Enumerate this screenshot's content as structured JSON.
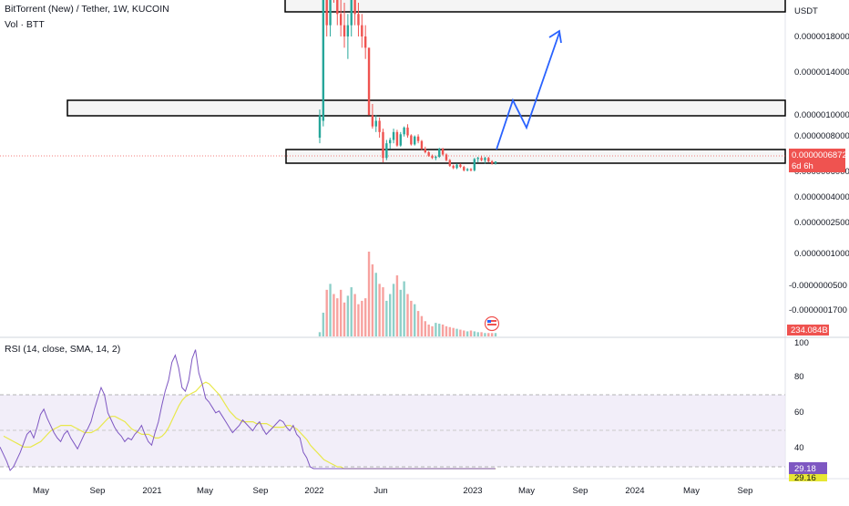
{
  "header": {
    "title": "BitTorrent (New) / Tether, 1W, KUCOIN",
    "volume_label": "Vol · BTT",
    "rsi_label": "RSI (14, close, SMA, 14, 2)"
  },
  "colors": {
    "up": "#26a69a",
    "down": "#ef5350",
    "up_volume": "#8fd0c9",
    "down_volume": "#f7a29f",
    "rsi_line": "#7e57c2",
    "rsi_ma": "#e8e84b",
    "rsi_band": "#ede7f6",
    "projection": "#2962ff",
    "current_price_badge": "#ef5350",
    "rsi_value_badge": "#7e57c2",
    "rsi_ma_badge": "#e6e633"
  },
  "chart_data": {
    "type": "candlestick",
    "price_axis": {
      "currency": "USDT",
      "tick_labels": [
        "0.0000018000",
        "0.0000014000",
        "0.0000010000",
        "0.0000008000",
        "0.0000006000",
        "0.0000004000",
        "0.0000002500",
        "0.0000001000",
        "-0.0000000500",
        "-0.0000001700"
      ],
      "current_price": "0.0000006872",
      "countdown": "6d 6h",
      "volume_value": "234.084B"
    },
    "time_axis": [
      "May",
      "Sep",
      "2021",
      "May",
      "Sep",
      "2022",
      "Jun",
      "2023",
      "May",
      "Sep",
      "2024",
      "May",
      "Sep"
    ],
    "candles": [
      {
        "o": 9e-07,
        "h": 1.15e-06,
        "l": 8.5e-07,
        "c": 1.1e-06
      },
      {
        "o": 1.05e-06,
        "h": 2.4e-06,
        "l": 1e-06,
        "c": 2.3e-06
      },
      {
        "o": 2.3e-06,
        "h": 2.6e-06,
        "l": 1.8e-06,
        "c": 1.9e-06
      },
      {
        "o": 1.9e-06,
        "h": 2.5e-06,
        "l": 1.8e-06,
        "c": 2.4e-06
      },
      {
        "o": 2.4e-06,
        "h": 2.5e-06,
        "l": 2.1e-06,
        "c": 2.2e-06
      },
      {
        "o": 2.2e-06,
        "h": 2.3e-06,
        "l": 1.9e-06,
        "c": 2e-06
      },
      {
        "o": 2e-06,
        "h": 2.2e-06,
        "l": 1.8e-06,
        "c": 1.9e-06
      },
      {
        "o": 1.9e-06,
        "h": 2.1e-06,
        "l": 1.7e-06,
        "c": 1.8e-06
      },
      {
        "o": 1.8e-06,
        "h": 2e-06,
        "l": 1.6e-06,
        "c": 1.9e-06
      },
      {
        "o": 1.9e-06,
        "h": 2.3e-06,
        "l": 1.8e-06,
        "c": 2.2e-06
      },
      {
        "o": 2.2e-06,
        "h": 2.5e-06,
        "l": 1.9e-06,
        "c": 2e-06
      },
      {
        "o": 2e-06,
        "h": 2.1e-06,
        "l": 1.8e-06,
        "c": 1.9e-06
      },
      {
        "o": 1.9e-06,
        "h": 2e-06,
        "l": 1.7e-06,
        "c": 1.8e-06
      },
      {
        "o": 1.8e-06,
        "h": 1.9e-06,
        "l": 1.6e-06,
        "c": 1.7e-06
      },
      {
        "o": 1.7e-06,
        "h": 1.7e-06,
        "l": 1.1e-06,
        "c": 1.1e-06
      },
      {
        "o": 1.1e-06,
        "h": 1.2e-06,
        "l": 9.8e-07,
        "c": 1e-06
      },
      {
        "o": 1e-06,
        "h": 1.1e-06,
        "l": 9.5e-07,
        "c": 1.05e-06
      },
      {
        "o": 1.05e-06,
        "h": 1.08e-06,
        "l": 9e-07,
        "c": 9.5e-07
      },
      {
        "o": 9.5e-07,
        "h": 9.8e-07,
        "l": 6.8e-07,
        "c": 7.2e-07
      },
      {
        "o": 7.2e-07,
        "h": 8.8e-07,
        "l": 7e-07,
        "c": 8.5e-07
      },
      {
        "o": 8.5e-07,
        "h": 9e-07,
        "l": 8e-07,
        "c": 8.8e-07
      },
      {
        "o": 8.8e-07,
        "h": 9.8e-07,
        "l": 8.5e-07,
        "c": 9.5e-07
      },
      {
        "o": 9.5e-07,
        "h": 9.7e-07,
        "l": 8.2e-07,
        "c": 8.3e-07
      },
      {
        "o": 8.3e-07,
        "h": 9.5e-07,
        "l": 8.2e-07,
        "c": 9.3e-07
      },
      {
        "o": 9.3e-07,
        "h": 1e-06,
        "l": 9.1e-07,
        "c": 9.9e-07
      },
      {
        "o": 9.9e-07,
        "h": 1.02e-06,
        "l": 9e-07,
        "c": 9.2e-07
      },
      {
        "o": 9.2e-07,
        "h": 9.3e-07,
        "l": 8.3e-07,
        "c": 8.4e-07
      },
      {
        "o": 8.4e-07,
        "h": 9.2e-07,
        "l": 8.3e-07,
        "c": 9.1e-07
      },
      {
        "o": 9.1e-07,
        "h": 9.3e-07,
        "l": 8.5e-07,
        "c": 8.7e-07
      },
      {
        "o": 8.7e-07,
        "h": 8.8e-07,
        "l": 7.9e-07,
        "c": 8e-07
      },
      {
        "o": 8e-07,
        "h": 8.2e-07,
        "l": 7.6e-07,
        "c": 7.7e-07
      },
      {
        "o": 7.7e-07,
        "h": 7.8e-07,
        "l": 7.3e-07,
        "c": 7.4e-07
      },
      {
        "o": 7.4e-07,
        "h": 7.5e-07,
        "l": 7.1e-07,
        "c": 7.2e-07
      },
      {
        "o": 7.2e-07,
        "h": 7.4e-07,
        "l": 7e-07,
        "c": 7.3e-07
      },
      {
        "o": 7.3e-07,
        "h": 8.1e-07,
        "l": 7.2e-07,
        "c": 8e-07
      },
      {
        "o": 8e-07,
        "h": 8.1e-07,
        "l": 7.4e-07,
        "c": 7.5e-07
      },
      {
        "o": 7.5e-07,
        "h": 7.6e-07,
        "l": 6.9e-07,
        "c": 7e-07
      },
      {
        "o": 7e-07,
        "h": 7.1e-07,
        "l": 6.4e-07,
        "c": 6.5e-07
      },
      {
        "o": 6.5e-07,
        "h": 6.6e-07,
        "l": 6.2e-07,
        "c": 6.3e-07
      },
      {
        "o": 6.3e-07,
        "h": 6.7e-07,
        "l": 6.2e-07,
        "c": 6.6e-07
      },
      {
        "o": 6.6e-07,
        "h": 6.7e-07,
        "l": 6.3e-07,
        "c": 6.4e-07
      },
      {
        "o": 6.4e-07,
        "h": 6.5e-07,
        "l": 6e-07,
        "c": 6.1e-07
      },
      {
        "o": 6.1e-07,
        "h": 6.3e-07,
        "l": 6e-07,
        "c": 6.2e-07
      },
      {
        "o": 6.2e-07,
        "h": 6.3e-07,
        "l": 6e-07,
        "c": 6.1e-07
      },
      {
        "o": 6.1e-07,
        "h": 7.2e-07,
        "l": 6e-07,
        "c": 7.1e-07
      },
      {
        "o": 7.1e-07,
        "h": 7.3e-07,
        "l": 6.8e-07,
        "c": 7.2e-07
      },
      {
        "o": 7.2e-07,
        "h": 7.4e-07,
        "l": 6.9e-07,
        "c": 7e-07
      },
      {
        "o": 7e-07,
        "h": 7.3e-07,
        "l": 6.7e-07,
        "c": 7.2e-07
      },
      {
        "o": 7.2e-07,
        "h": 7.3e-07,
        "l": 6.8e-07,
        "c": 6.9e-07
      },
      {
        "o": 6.9e-07,
        "h": 7e-07,
        "l": 6.6e-07,
        "c": 6.7e-07
      },
      {
        "o": 6.7e-07,
        "h": 6.9e-07,
        "l": 6.6e-07,
        "c": 6.872e-07
      }
    ],
    "volume": [
      0.05,
      0.28,
      0.55,
      0.62,
      0.5,
      0.45,
      0.55,
      0.4,
      0.48,
      0.58,
      0.5,
      0.38,
      0.42,
      0.45,
      1.0,
      0.85,
      0.75,
      0.62,
      0.58,
      0.42,
      0.5,
      0.62,
      0.72,
      0.55,
      0.65,
      0.5,
      0.42,
      0.38,
      0.3,
      0.24,
      0.18,
      0.14,
      0.12,
      0.16,
      0.15,
      0.14,
      0.12,
      0.11,
      0.1,
      0.09,
      0.08,
      0.07,
      0.06,
      0.07,
      0.06,
      0.05,
      0.05,
      0.04,
      0.04,
      0.04,
      0.04
    ],
    "rsi": {
      "ticks": [
        100,
        80,
        60,
        40
      ],
      "upper_band": 70,
      "lower_band": 30,
      "current": "29.18",
      "ma_current": "29.16",
      "values": [
        41,
        37,
        33,
        28,
        30,
        34,
        38,
        43,
        48,
        50,
        46,
        52,
        59,
        62,
        57,
        53,
        49,
        46,
        44,
        48,
        50,
        46,
        43,
        40,
        44,
        48,
        51,
        55,
        62,
        68,
        74,
        70,
        60,
        56,
        52,
        49,
        47,
        44,
        46,
        45,
        48,
        50,
        53,
        48,
        44,
        42,
        49,
        55,
        64,
        72,
        78,
        88,
        92,
        85,
        74,
        72,
        78,
        90,
        95,
        82,
        76,
        68,
        66,
        63,
        60,
        61,
        58,
        55,
        52,
        49,
        51,
        53,
        56,
        54,
        52,
        50,
        53,
        55,
        51,
        48,
        50,
        52,
        54,
        56,
        55,
        52,
        50,
        53,
        48,
        46,
        38,
        35,
        30,
        29,
        29,
        29,
        29,
        29,
        29,
        29,
        29,
        29,
        29,
        29,
        29,
        29,
        29,
        29,
        29,
        29,
        29,
        29,
        29,
        29,
        29,
        29,
        29,
        29,
        29,
        29,
        29,
        29,
        29,
        29,
        29,
        29,
        29,
        29,
        29,
        29,
        29,
        29,
        29,
        29,
        29,
        29,
        29,
        29,
        29,
        29,
        29,
        29,
        29,
        29,
        29,
        29,
        29,
        29
      ],
      "ma": [
        47,
        46,
        45,
        44,
        43,
        42,
        41,
        41,
        41,
        42,
        43,
        44,
        46,
        48,
        50,
        51,
        52,
        53,
        53,
        53,
        53,
        52,
        51,
        50,
        49,
        49,
        49,
        50,
        51,
        53,
        55,
        57,
        58,
        58,
        57,
        56,
        55,
        53,
        51,
        50,
        49,
        48,
        48,
        48,
        47,
        46,
        46,
        47,
        49,
        52,
        56,
        60,
        64,
        67,
        69,
        70,
        71,
        72,
        74,
        76,
        77,
        76,
        74,
        72,
        70,
        67,
        64,
        61,
        59,
        57,
        56,
        55,
        55,
        55,
        55,
        54,
        54,
        54,
        54,
        53,
        52,
        52,
        52,
        52,
        53,
        53,
        52,
        51,
        49,
        47,
        45,
        42,
        40,
        38,
        36,
        34,
        33,
        32,
        31,
        30,
        30,
        29,
        29,
        29,
        29,
        29,
        29,
        29,
        29,
        29,
        29,
        29,
        29,
        29,
        29,
        29,
        29,
        29,
        29,
        29,
        29,
        29,
        29,
        29,
        29,
        29,
        29,
        29,
        29,
        29,
        29,
        29,
        29,
        29,
        29,
        29,
        29,
        29,
        29,
        29,
        29,
        29,
        29,
        29,
        29,
        29,
        29
      ]
    }
  }
}
